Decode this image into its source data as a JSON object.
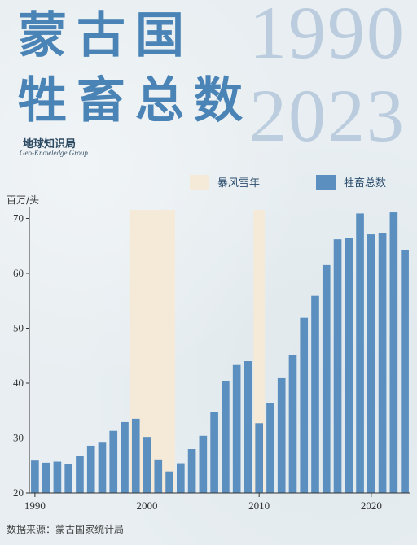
{
  "header": {
    "title_line1": "蒙古国",
    "title_line2": "牲畜总数",
    "year_start": "1990",
    "year_end": "2023",
    "brand_cn": "地球知识局",
    "brand_en": "Geo-Knowledge Group"
  },
  "colors": {
    "bar": "#5b8fbf",
    "blizzard": "#f5ead8",
    "title": "#4a83b5"
  },
  "chart_data": {
    "type": "bar",
    "ylabel": "百万/头",
    "ylim": [
      20,
      72
    ],
    "yticks": [
      20,
      30,
      40,
      50,
      60,
      70
    ],
    "xticks": [
      1990,
      2000,
      2010,
      2020
    ],
    "x": [
      1990,
      1991,
      1992,
      1993,
      1994,
      1995,
      1996,
      1997,
      1998,
      1999,
      2000,
      2001,
      2002,
      2003,
      2004,
      2005,
      2006,
      2007,
      2008,
      2009,
      2010,
      2011,
      2012,
      2013,
      2014,
      2015,
      2016,
      2017,
      2018,
      2019,
      2020,
      2021,
      2022,
      2023
    ],
    "series": [
      {
        "name": "牲畜总数",
        "values": [
          25.9,
          25.5,
          25.7,
          25.2,
          26.8,
          28.6,
          29.3,
          31.3,
          32.9,
          33.5,
          30.2,
          26.1,
          23.9,
          25.4,
          28.0,
          30.4,
          34.8,
          40.3,
          43.3,
          44.0,
          32.7,
          36.3,
          40.9,
          45.1,
          51.9,
          55.9,
          61.5,
          66.2,
          66.5,
          70.9,
          67.1,
          67.3,
          71.1,
          64.3
        ]
      }
    ],
    "highlight_periods": [
      {
        "name": "暴风雪年",
        "from": 1999,
        "to": 2002
      },
      {
        "name": "暴风雪年",
        "from": 2010,
        "to": 2010
      }
    ],
    "grid": false,
    "legend_position": "top-right"
  },
  "legend": {
    "blizzard_label": "暴风雪年",
    "total_label": "牲畜总数"
  },
  "source": "数据来源：蒙古国家统计局"
}
